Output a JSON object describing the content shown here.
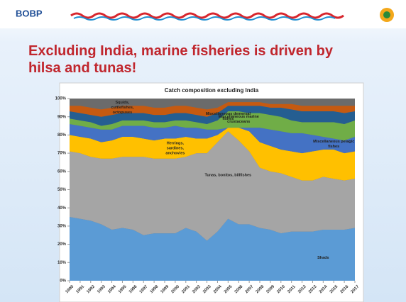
{
  "header": {
    "logo": "BOBP"
  },
  "slide_title": "Excluding India, marine fisheries is driven by hilsa and tunas!",
  "chart_data": {
    "type": "stacked-area",
    "title": "Catch composition excluding India",
    "x": [
      1990,
      1991,
      1992,
      1993,
      1994,
      1995,
      1996,
      1997,
      1998,
      1999,
      2000,
      2001,
      2002,
      2003,
      2004,
      2005,
      2006,
      2007,
      2008,
      2009,
      2010,
      2011,
      2012,
      2013,
      2014,
      2015,
      2016,
      2017
    ],
    "xlim": [
      1990,
      2017
    ],
    "ylim": [
      0,
      100
    ],
    "yticks": [
      {
        "value": 0,
        "label": "0%"
      },
      {
        "value": 10,
        "label": "10%"
      },
      {
        "value": 20,
        "label": "20%"
      },
      {
        "value": 30,
        "label": "30%"
      },
      {
        "value": 40,
        "label": "40%"
      },
      {
        "value": 50,
        "label": "50%"
      },
      {
        "value": 60,
        "label": "60%"
      },
      {
        "value": 70,
        "label": "70%"
      },
      {
        "value": 80,
        "label": "80%"
      },
      {
        "value": 90,
        "label": "90%"
      },
      {
        "value": 100,
        "label": "100%"
      }
    ],
    "remainder_color": "#6b6b6b",
    "series": [
      {
        "name": "Shads",
        "color": "#5b9bd5",
        "values": [
          35,
          34,
          33,
          31,
          28,
          29,
          28,
          25,
          26,
          26,
          26,
          29,
          27,
          22,
          27,
          34,
          31,
          31,
          29,
          28,
          26,
          27,
          27,
          27,
          28,
          28,
          28,
          29
        ]
      },
      {
        "name": "Tunas, bonitos, billfishes",
        "color": "#a5a5a5",
        "values": [
          36,
          36,
          35,
          36,
          39,
          39,
          40,
          43,
          41,
          41,
          41,
          39,
          43,
          48,
          49,
          48,
          46,
          40,
          33,
          32,
          33,
          30,
          28,
          28,
          29,
          28,
          27,
          27
        ]
      },
      {
        "name": "Herrings, sardines, anchovies",
        "color": "#ffc000",
        "values": [
          9,
          9,
          10,
          9,
          10,
          11,
          11,
          10,
          10,
          11,
          11,
          11,
          8,
          8,
          4,
          2,
          7,
          11,
          14,
          14,
          13,
          14,
          15,
          16,
          15,
          16,
          15,
          15
        ]
      },
      {
        "name": "Miscellaneous pelagic fishes",
        "color": "#4472c4",
        "values": [
          6,
          6,
          6,
          7,
          6,
          6,
          6,
          7,
          7,
          6,
          7,
          5,
          6,
          5,
          3,
          0,
          0,
          2,
          8,
          9,
          10,
          10,
          11,
          9,
          7,
          6,
          7,
          8
        ]
      },
      {
        "name": "Miscellaneous marine crustaceans",
        "color": "#70ad47",
        "values": [
          3,
          3,
          3,
          2,
          3,
          3,
          3,
          3,
          3,
          3,
          3,
          4,
          3,
          3,
          5,
          9,
          9,
          8,
          8,
          8,
          8,
          7,
          6,
          7,
          8,
          9,
          9,
          9
        ]
      },
      {
        "name": "Miscellaneous demersal fishes",
        "color": "#255e91",
        "values": [
          4,
          4,
          4,
          5,
          5,
          4,
          4,
          4,
          4,
          4,
          4,
          4,
          4,
          4,
          4,
          3,
          3,
          4,
          4,
          4,
          5,
          6,
          6,
          6,
          6,
          6,
          6,
          5
        ]
      },
      {
        "name": "Squids, cuttlefishes, octopuses",
        "color": "#c55a11",
        "values": [
          3,
          4,
          4,
          4,
          4,
          4,
          4,
          4,
          4,
          4,
          4,
          4,
          4,
          4,
          3,
          2,
          2,
          2,
          2,
          2,
          2,
          3,
          3,
          3,
          3,
          3,
          4,
          3
        ]
      }
    ]
  }
}
